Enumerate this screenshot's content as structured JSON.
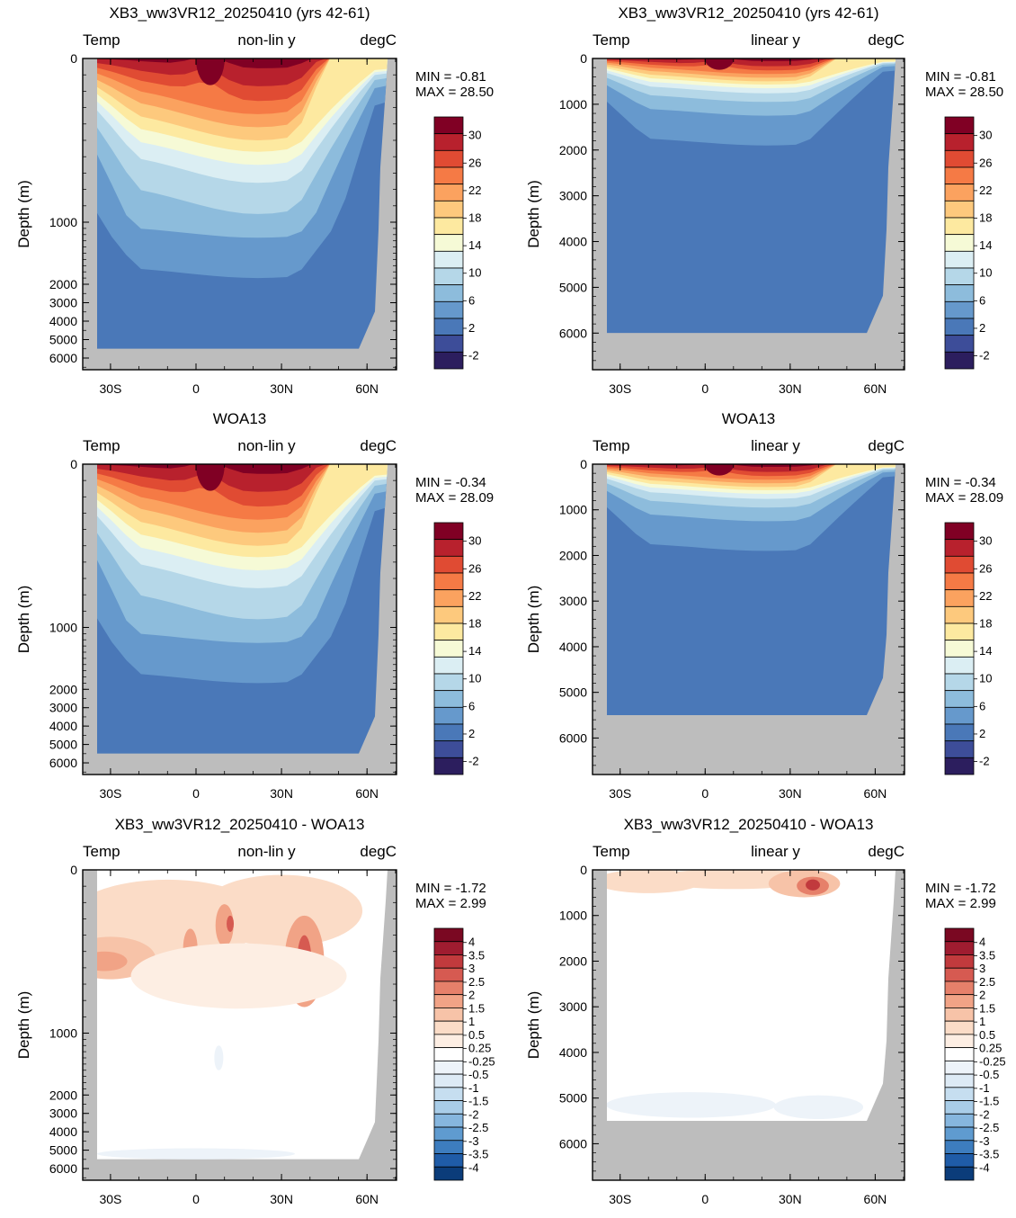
{
  "palettes": {
    "temperature": [
      "#2c1e5e",
      "#3d4d99",
      "#4a78b8",
      "#6699cc",
      "#8dbcdc",
      "#b5d7e8",
      "#dbeef3",
      "#f6fad6",
      "#fde9a0",
      "#fdc97d",
      "#fba25f",
      "#f57a45",
      "#e04b33",
      "#b8212d",
      "#800024"
    ],
    "difference": [
      "#0b3c7a",
      "#1f5ca8",
      "#3d7dbf",
      "#5f9bd0",
      "#86b6de",
      "#a9cde8",
      "#c6def0",
      "#ddeaf5",
      "#edf3f9",
      "#ffffff",
      "#fdeee3",
      "#fbdcc7",
      "#f7c3a8",
      "#f1a386",
      "#e6806a",
      "#d65a51",
      "#c13a3d",
      "#9f1c30",
      "#7a0822"
    ],
    "land": "#bdbdbd"
  },
  "chart_data": [
    {
      "id": "model-nonlin",
      "type": "contour",
      "title": "XB3_ww3VR12_20250410 (yrs 42-61)",
      "left_label": "Temp",
      "center_label": "non-lin y",
      "right_label": "degC",
      "ylabel": "Depth (m)",
      "y_scale": "non-linear",
      "y_ticks": [
        "0",
        "1000",
        "2000",
        "3000",
        "4000",
        "5000",
        "6000"
      ],
      "x_ticks": [
        "30S",
        "0",
        "30N",
        "60N"
      ],
      "stats": {
        "min": "MIN =  -0.81",
        "max": "MAX =  28.50"
      },
      "colorbar": {
        "labels": [
          "30",
          "26",
          "22",
          "18",
          "14",
          "10",
          "6",
          "2",
          "-2"
        ],
        "boxes": 15
      },
      "field": "temperature"
    },
    {
      "id": "model-lin",
      "type": "contour",
      "title": "XB3_ww3VR12_20250410 (yrs 42-61)",
      "left_label": "Temp",
      "center_label": "linear y",
      "right_label": "degC",
      "ylabel": "Depth (m)",
      "y_scale": "linear",
      "y_ticks": [
        "0",
        "1000",
        "2000",
        "3000",
        "4000",
        "5000",
        "6000"
      ],
      "x_ticks": [
        "30S",
        "0",
        "30N",
        "60N"
      ],
      "stats": {
        "min": "MIN =  -0.81",
        "max": "MAX =  28.50"
      },
      "colorbar": {
        "labels": [
          "30",
          "26",
          "22",
          "18",
          "14",
          "10",
          "6",
          "2",
          "-2"
        ],
        "boxes": 15
      },
      "field": "temperature"
    },
    {
      "id": "obs-nonlin",
      "type": "contour",
      "title": "WOA13",
      "left_label": "Temp",
      "center_label": "non-lin y",
      "right_label": "degC",
      "ylabel": "Depth (m)",
      "y_scale": "non-linear",
      "y_ticks": [
        "0",
        "1000",
        "2000",
        "3000",
        "4000",
        "5000",
        "6000"
      ],
      "x_ticks": [
        "30S",
        "0",
        "30N",
        "60N"
      ],
      "stats": {
        "min": "MIN =  -0.34",
        "max": "MAX =  28.09"
      },
      "colorbar": {
        "labels": [
          "30",
          "26",
          "22",
          "18",
          "14",
          "10",
          "6",
          "2",
          "-2"
        ],
        "boxes": 15
      },
      "field": "temperature"
    },
    {
      "id": "obs-lin",
      "type": "contour",
      "title": "WOA13",
      "left_label": "Temp",
      "center_label": "linear y",
      "right_label": "degC",
      "ylabel": "Depth (m)",
      "y_scale": "linear",
      "y_ticks": [
        "0",
        "1000",
        "2000",
        "3000",
        "4000",
        "5000",
        "6000"
      ],
      "x_ticks": [
        "30S",
        "0",
        "30N",
        "60N"
      ],
      "stats": {
        "min": "MIN =  -0.34",
        "max": "MAX =  28.09"
      },
      "colorbar": {
        "labels": [
          "30",
          "26",
          "22",
          "18",
          "14",
          "10",
          "6",
          "2",
          "-2"
        ],
        "boxes": 15
      },
      "field": "temperature"
    },
    {
      "id": "diff-nonlin",
      "type": "contour",
      "title": "XB3_ww3VR12_20250410 - WOA13",
      "left_label": "Temp",
      "center_label": "non-lin y",
      "right_label": "degC",
      "ylabel": "Depth (m)",
      "y_scale": "non-linear",
      "y_ticks": [
        "0",
        "1000",
        "2000",
        "3000",
        "4000",
        "5000",
        "6000"
      ],
      "x_ticks": [
        "30S",
        "0",
        "30N",
        "60N"
      ],
      "stats": {
        "min": "MIN =  -1.72",
        "max": "MAX =   2.99"
      },
      "colorbar": {
        "labels": [
          "4",
          "3.5",
          "3",
          "2.5",
          "2",
          "1.5",
          "1",
          "0.5",
          "0.25",
          "-0.25",
          "-0.5",
          "-1",
          "-1.5",
          "-2",
          "-2.5",
          "-3",
          "-3.5",
          "-4"
        ],
        "boxes": 19
      },
      "field": "difference"
    },
    {
      "id": "diff-lin",
      "type": "contour",
      "title": "XB3_ww3VR12_20250410 - WOA13",
      "left_label": "Temp",
      "center_label": "linear y",
      "right_label": "degC",
      "ylabel": "Depth (m)",
      "y_scale": "linear",
      "y_ticks": [
        "0",
        "1000",
        "2000",
        "3000",
        "4000",
        "5000",
        "6000"
      ],
      "x_ticks": [
        "30S",
        "0",
        "30N",
        "60N"
      ],
      "stats": {
        "min": "MIN =  -1.72",
        "max": "MAX =   2.99"
      },
      "colorbar": {
        "labels": [
          "4",
          "3.5",
          "3",
          "2.5",
          "2",
          "1.5",
          "1",
          "0.5",
          "0.25",
          "-0.25",
          "-0.5",
          "-1",
          "-1.5",
          "-2",
          "-2.5",
          "-3",
          "-3.5",
          "-4"
        ],
        "boxes": 19
      },
      "field": "difference"
    }
  ]
}
